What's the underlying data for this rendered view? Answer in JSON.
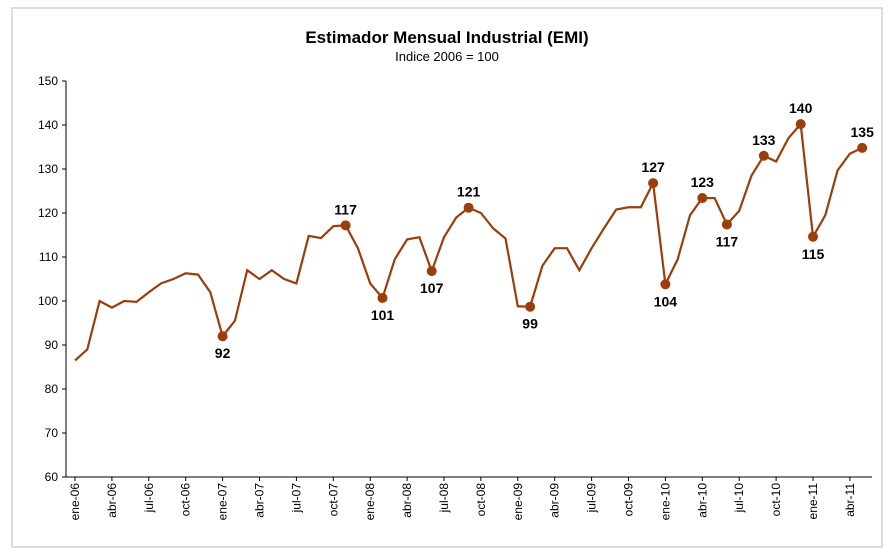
{
  "chart_data": {
    "type": "line",
    "title": "Estimador Mensual Industrial (EMI)",
    "subtitle": "Indice 2006 = 100",
    "categories": [
      "ene-06",
      null,
      null,
      "abr-06",
      null,
      null,
      "jul-06",
      null,
      null,
      "oct-06",
      null,
      null,
      "ene-07",
      null,
      null,
      "abr-07",
      null,
      null,
      "jul-07",
      null,
      null,
      "oct-07",
      null,
      null,
      "ene-08",
      null,
      null,
      "abr-08",
      null,
      null,
      "jul-08",
      null,
      null,
      "oct-08",
      null,
      null,
      "ene-09",
      null,
      null,
      "abr-09",
      null,
      null,
      "jul-09",
      null,
      null,
      "oct-09",
      null,
      null,
      "ene-10",
      null,
      null,
      "abr-10",
      null,
      null,
      "jul-10",
      null,
      null,
      "oct-10",
      null,
      null,
      "ene-11",
      null,
      null,
      "abr-11",
      null
    ],
    "values": [
      86.5,
      89,
      100,
      98.5,
      100,
      99.8,
      102,
      104,
      105,
      106.3,
      106,
      102,
      92,
      95.5,
      107,
      105,
      107,
      105,
      104,
      114.8,
      114.3,
      117,
      117.2,
      112,
      104,
      100.7,
      109.5,
      114,
      114.5,
      106.8,
      114.5,
      119,
      121.2,
      120,
      116.5,
      114.2,
      98.8,
      98.7,
      108,
      112,
      112,
      107,
      112,
      116.5,
      120.8,
      121.3,
      121.3,
      126.8,
      103.8,
      109.5,
      119.5,
      123.4,
      123.4,
      117.4,
      120.5,
      128.5,
      133,
      131.7,
      137,
      140.2,
      114.6,
      119.5,
      129.7,
      133.5,
      134.8
    ],
    "value_labels": [
      null,
      null,
      null,
      null,
      null,
      null,
      null,
      null,
      null,
      null,
      null,
      null,
      "92",
      null,
      null,
      null,
      null,
      null,
      null,
      null,
      null,
      null,
      "117",
      null,
      null,
      "101",
      null,
      null,
      null,
      "107",
      null,
      null,
      "121",
      null,
      null,
      null,
      null,
      "99",
      null,
      null,
      null,
      null,
      null,
      null,
      null,
      null,
      null,
      "127",
      "104",
      null,
      null,
      "123",
      null,
      "117",
      null,
      null,
      "133",
      null,
      null,
      "140",
      "115",
      null,
      null,
      null,
      "135"
    ],
    "label_below": [
      12,
      25,
      29,
      37,
      48,
      53,
      60
    ],
    "color": "#9c3d0a",
    "ylim": [
      60,
      150
    ],
    "yticks": [
      60,
      70,
      80,
      90,
      100,
      110,
      120,
      130,
      140,
      150
    ]
  }
}
